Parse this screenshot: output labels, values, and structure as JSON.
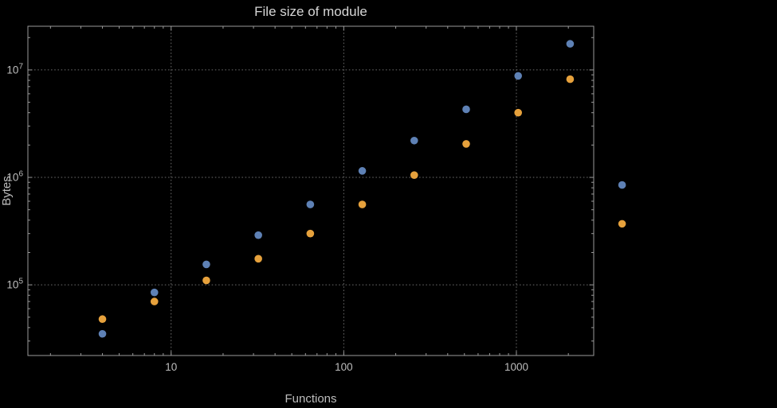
{
  "chart_data": {
    "type": "scatter",
    "title": "File size of module",
    "xlabel": "Functions",
    "ylabel": "Bytes",
    "x_scale": "log",
    "y_scale": "log",
    "x": [
      4,
      8,
      16,
      32,
      64,
      128,
      256,
      512,
      1024,
      2048,
      4096
    ],
    "series": [
      {
        "name": "series-blue",
        "color": "#5E81B5",
        "values": [
          35000,
          85000,
          155000,
          290000,
          560000,
          1150000,
          2200000,
          4300000,
          8800000,
          17500000,
          850000
        ]
      },
      {
        "name": "series-orange",
        "color": "#E6A13C",
        "values": [
          48000,
          70000,
          110000,
          175000,
          300000,
          560000,
          1050000,
          2050000,
          4000000,
          8200000,
          370000
        ]
      }
    ],
    "x_ticks": [
      10,
      100,
      1000
    ],
    "x_tick_labels": [
      "10",
      "100",
      "1000"
    ],
    "y_ticks": [
      100000,
      1000000,
      10000000
    ],
    "y_tick_base": "10",
    "y_tick_exponents": [
      "5",
      "6",
      "7"
    ],
    "x_range": [
      1.48,
      2805
    ],
    "y_range": [
      22000,
      25500000
    ],
    "grid": true,
    "legend": "none",
    "marker_radius": 4.8,
    "colors": {
      "background": "#000000",
      "frame": "#9a9a9a",
      "grid": "#6e6e6e",
      "tick_text": "#bdbdbd",
      "title_text": "#d6d6d6"
    }
  }
}
